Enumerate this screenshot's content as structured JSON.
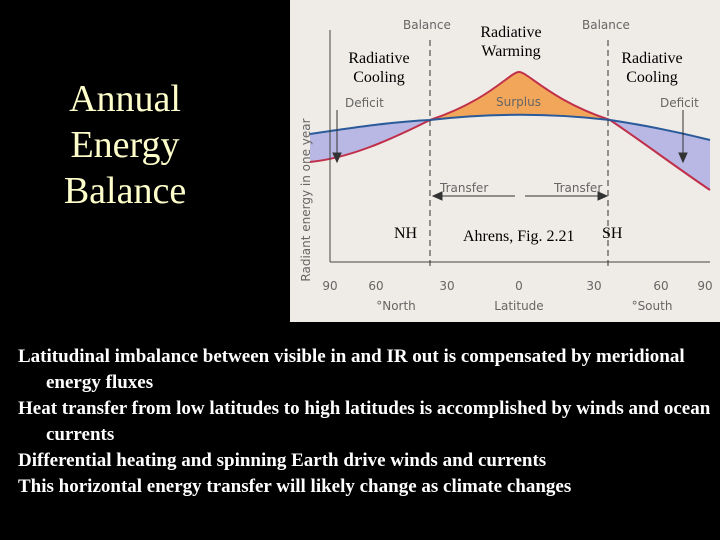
{
  "title": "Annual Energy Balance",
  "figure": {
    "balance_labels": [
      "Balance",
      "Balance"
    ],
    "cooling_left": "Radiative Cooling",
    "warming": "Radiative Warming",
    "cooling_right": "Radiative Cooling",
    "deficit_labels": [
      "Deficit",
      "Deficit"
    ],
    "surplus": "Surplus",
    "transfer_labels": [
      "Transfer",
      "Transfer"
    ],
    "y_axis_label": "Radiant energy in one year",
    "nh": "NH",
    "sh": "SH",
    "source": "Ahrens, Fig. 2.21",
    "x_ticks": [
      "90",
      "60",
      "30",
      "0",
      "30",
      "60",
      "90"
    ],
    "north": "°North",
    "x_axis_label": "Latitude",
    "south": "°South"
  },
  "bullets": [
    "Latitudinal imbalance between visible in and IR out is compensated by meridional energy fluxes",
    "Heat transfer from low latitudes to high latitudes is accomplished by winds and ocean currents",
    "Differential heating and spinning Earth drive winds and currents",
    "This horizontal energy transfer will likely change as climate changes"
  ]
}
